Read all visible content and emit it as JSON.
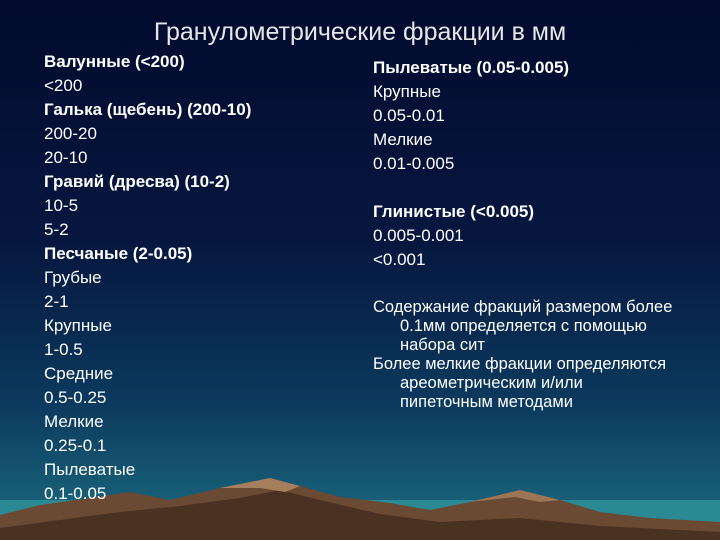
{
  "title": "Гранулометрические фракции в мм",
  "left_groups": [
    {
      "heading": "Валунные (<200)",
      "items": [
        "<200"
      ]
    },
    {
      "heading": "Галька (щебень) (200-10)",
      "items": [
        "200-20",
        "20-10"
      ]
    },
    {
      "heading": "Гравий (дресва) (10-2)",
      "items": [
        "10-5",
        "5-2"
      ]
    },
    {
      "heading": "Песчаные (2-0.05)",
      "items": [
        "Грубые",
        "2-1",
        "Крупные",
        "1-0.5",
        "Средние",
        "0.5-0.25",
        "Мелкие",
        "0.25-0.1",
        "Пылеватые",
        "0.1-0.05"
      ]
    }
  ],
  "right_groups": [
    {
      "heading": "Пылеватые (0.05-0.005)",
      "items": [
        "Крупные",
        "0.05-0.01",
        "Мелкие",
        "0.01-0.005"
      ]
    },
    {
      "heading": "Глинистые (<0.005)",
      "items": [
        "0.005-0.001",
        "<0.001"
      ]
    }
  ],
  "notes": [
    "Содержание фракций размером более 0.1мм определяется с помощью набора сит",
    "Более мелкие фракции определяются ареометрическим и/или пипеточным методами"
  ]
}
